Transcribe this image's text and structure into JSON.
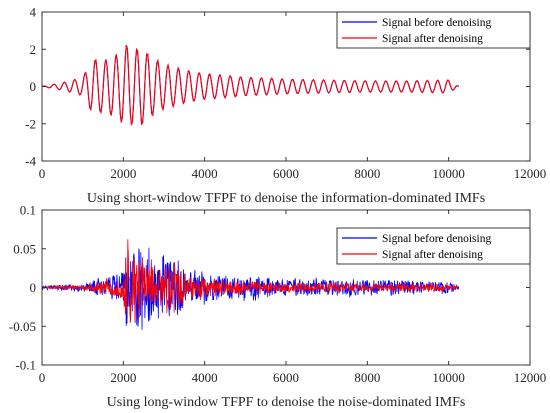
{
  "chart_data": [
    {
      "type": "line",
      "xlabel": "Using short-window TFPF to denoise the information-dominated IMFs",
      "ylabel": "",
      "xlim": [
        0,
        12000
      ],
      "ylim": [
        -4,
        4
      ],
      "xticks": [
        0,
        2000,
        4000,
        6000,
        8000,
        10000,
        12000
      ],
      "yticks": [
        4,
        2,
        0,
        -2,
        -4
      ],
      "x_tick_labels": [
        "0",
        "2000",
        "4000",
        "6000",
        "8000",
        "10000",
        "12000"
      ],
      "y_tick_labels": [
        "4",
        "2",
        "0",
        "-2",
        "-4"
      ],
      "grid": false,
      "legend_position": "top-right",
      "series": [
        {
          "name": "Signal before denoising",
          "color": "#0000ff",
          "description_points": {
            "x": [
              0,
              600,
              1000,
              1250,
              1500,
              1750,
              2000,
              2100,
              2250,
              2450,
              2700,
              3000,
              3500,
              4000,
              5000,
              6000,
              7000,
              8000,
              9000,
              10000,
              10250
            ],
            "y": [
              0,
              0.25,
              0.5,
              1.5,
              1.4,
              1.6,
              2.0,
              2.3,
              2.0,
              2.1,
              1.6,
              1.2,
              0.9,
              0.7,
              0.5,
              0.4,
              0.35,
              0.3,
              0.3,
              0.35,
              0
            ]
          }
        },
        {
          "name": "Signal after denoising",
          "color": "#ff0000",
          "description_points": {
            "x": [
              0,
              600,
              1000,
              1250,
              1500,
              1750,
              2000,
              2100,
              2250,
              2450,
              2700,
              3000,
              3500,
              4000,
              5000,
              6000,
              7000,
              8000,
              9000,
              10000,
              10250
            ],
            "y": [
              0,
              0.25,
              0.5,
              1.5,
              1.4,
              1.6,
              2.0,
              2.3,
              2.0,
              2.1,
              1.6,
              1.2,
              0.9,
              0.7,
              0.5,
              0.4,
              0.35,
              0.3,
              0.3,
              0.35,
              0
            ]
          }
        }
      ]
    },
    {
      "type": "line",
      "xlabel": "Using long-window TFPF to denoise the noise-dominated IMFs",
      "ylabel": "",
      "xlim": [
        0,
        12000
      ],
      "ylim": [
        -0.1,
        0.1
      ],
      "xticks": [
        0,
        2000,
        4000,
        6000,
        8000,
        10000,
        12000
      ],
      "yticks": [
        0.1,
        0.05,
        0,
        -0.05,
        -0.1
      ],
      "x_tick_labels": [
        "0",
        "2000",
        "4000",
        "6000",
        "8000",
        "10000",
        "12000"
      ],
      "y_tick_labels": [
        "0.1",
        "0.05",
        "0",
        "-0.05",
        "-0.1"
      ],
      "grid": false,
      "legend_position": "top-right",
      "series": [
        {
          "name": "Signal before denoising",
          "color": "#0000ff",
          "description_points": {
            "x": [
              0,
              1000,
              1500,
              2000,
              2080,
              2200,
              2450,
              2800,
              3300,
              3600,
              4000,
              5000,
              6000,
              7000,
              8000,
              9000,
              10000,
              10250
            ],
            "y": [
              0.002,
              0.005,
              0.012,
              0.02,
              0.07,
              0.04,
              0.06,
              0.03,
              0.04,
              0.02,
              0.018,
              0.014,
              0.012,
              0.01,
              0.01,
              0.009,
              0.008,
              0.002
            ]
          }
        },
        {
          "name": "Signal after denoising",
          "color": "#ff0000",
          "description_points": {
            "x": [
              0,
              1000,
              1500,
              2000,
              2080,
              2200,
              2450,
              2800,
              3300,
              3600,
              4000,
              5000,
              6000,
              7000,
              8000,
              9000,
              10000,
              10250
            ],
            "y": [
              0.001,
              0.003,
              0.008,
              0.015,
              0.072,
              0.04,
              0.05,
              0.02,
              0.035,
              0.015,
              0.012,
              0.008,
              0.006,
              0.006,
              0.005,
              0.005,
              0.004,
              0.001
            ]
          }
        }
      ]
    }
  ]
}
